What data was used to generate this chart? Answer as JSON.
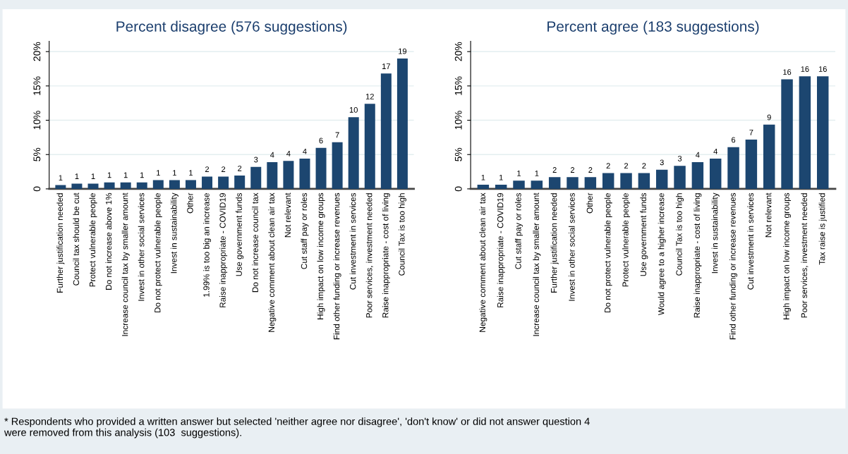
{
  "chart_data": [
    {
      "type": "bar",
      "title": "Percent disagree (576 suggestions)",
      "color": "#1c4670",
      "categories": [
        "Further justification needed",
        "Council tax should be cut",
        "Protect vulnerable people",
        "Do not increase above 1%",
        "Increase council tax by smaller amount",
        "Invest in other social services",
        "Do not protect vulnerable people",
        "Invest in sustainability",
        "Other",
        "1.99% is too big an increase",
        "Raise inappropriate - COVID19",
        "Use government funds",
        "Do not increase council tax",
        "Negative comment about clean air tax",
        "Not relevant",
        "Cut staff pay or roles",
        "High impact on low income groups",
        "Find other funding or increase revenues",
        "Cut investment in services",
        "Poor services, investment needed",
        "Raise inappropriate - cost of living",
        "Council Tax is too high"
      ],
      "values": [
        0.55,
        0.77,
        0.77,
        0.95,
        0.95,
        0.95,
        1.28,
        1.28,
        1.28,
        1.8,
        1.8,
        1.93,
        3.2,
        3.9,
        4.08,
        4.4,
        5.97,
        6.8,
        10.45,
        12.4,
        16.8,
        19.0
      ],
      "value_labels": [
        "1",
        "1",
        "1",
        "1",
        "1",
        "1",
        "1",
        "1",
        "1",
        "2",
        "2",
        "2",
        "3",
        "4",
        "4",
        "4",
        "6",
        "7",
        "10",
        "12",
        "17",
        "19"
      ],
      "ylim": [
        0,
        21.5
      ],
      "yticks": [
        {
          "value": 0,
          "label": "0"
        },
        {
          "value": 5,
          "label": "5%"
        },
        {
          "value": 10,
          "label": "10%"
        },
        {
          "value": 15,
          "label": "15%"
        },
        {
          "value": 20,
          "label": "20%"
        }
      ],
      "grid": "y",
      "annotations": [
        "* Respondents who provided a written answer but selected 'neither agree nor disagree', 'don't know' or did not answer question 4\nwere removed from this analysis (103  suggestions)."
      ]
    },
    {
      "type": "bar",
      "title": "Percent agree (183 suggestions)",
      "color": "#1c4670",
      "categories": [
        "Negative comment about clean air tax",
        "Raise inappropriate - COVID19",
        "Cut staff pay or roles",
        "Increase council tax by smaller amount",
        "Further justification needed",
        "Invest in other social services",
        "Other",
        "Do not protect vulnerable people",
        "Protect vulnerable people",
        "Use government funds",
        "Would agree to a higher increase",
        "Council Tax is too high",
        "Raise inappropriate - cost of living",
        "Invest in sustainability",
        "Find other funding or increase revenues",
        "Cut investment in services",
        "Not relevant",
        "High impact on low income groups",
        "Poor services, investment needed",
        "Tax raise is justified"
      ],
      "values": [
        0.6,
        0.6,
        1.2,
        1.2,
        1.7,
        1.7,
        1.7,
        2.3,
        2.3,
        2.3,
        2.8,
        3.36,
        3.9,
        4.4,
        6.08,
        7.17,
        9.36,
        15.96,
        16.4,
        16.4
      ],
      "value_labels": [
        "1",
        "1",
        "1",
        "1",
        "2",
        "2",
        "2",
        "2",
        "2",
        "2",
        "3",
        "3",
        "4",
        "4",
        "6",
        "7",
        "9",
        "16",
        "16",
        "16"
      ],
      "ylim": [
        0,
        21.5
      ],
      "yticks": [
        {
          "value": 0,
          "label": "0"
        },
        {
          "value": 5,
          "label": "5%"
        },
        {
          "value": 10,
          "label": "10%"
        },
        {
          "value": 15,
          "label": "15%"
        },
        {
          "value": 20,
          "label": "20%"
        }
      ],
      "grid": "y"
    }
  ]
}
